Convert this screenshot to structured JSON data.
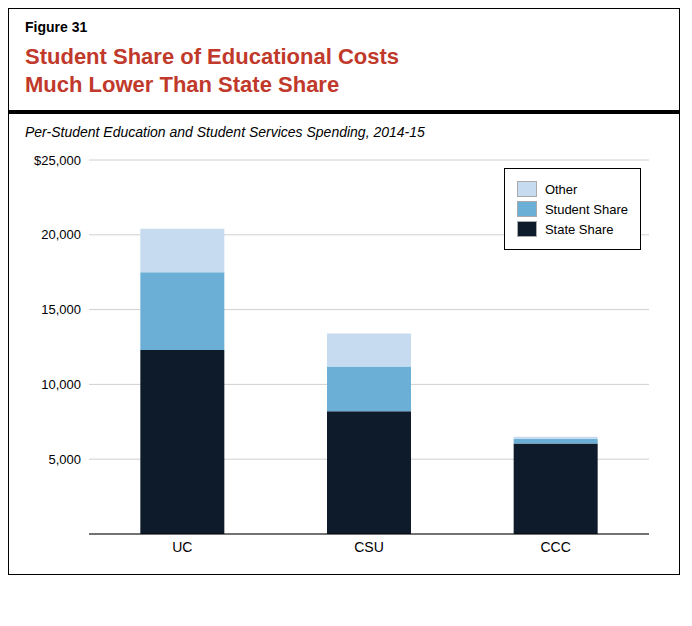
{
  "chart_data": {
    "type": "bar",
    "stacked": true,
    "annotations": [
      "Figure 31"
    ],
    "title": "Student Share of Educational Costs\nMuch Lower Than State Share",
    "subtitle": "Per-Student Education and Student Services Spending, 2014-15",
    "categories": [
      "UC",
      "CSU",
      "CCC"
    ],
    "series": [
      {
        "name": "State Share",
        "color": "#0d1b2a",
        "values": [
          12300,
          8200,
          6050
        ]
      },
      {
        "name": "Student Share",
        "color": "#6baed6",
        "values": [
          5200,
          3000,
          300
        ]
      },
      {
        "name": "Other",
        "color": "#c6dbef",
        "values": [
          2900,
          2200,
          150
        ]
      }
    ],
    "ylim": [
      0,
      25000
    ],
    "yticks": [
      {
        "value": 0,
        "label": ""
      },
      {
        "value": 5000,
        "label": "5,000"
      },
      {
        "value": 10000,
        "label": "10,000"
      },
      {
        "value": 15000,
        "label": "15,000"
      },
      {
        "value": 20000,
        "label": "20,000"
      },
      {
        "value": 25000,
        "label": "$25,000"
      }
    ],
    "grid": true,
    "legend": "upper right"
  }
}
